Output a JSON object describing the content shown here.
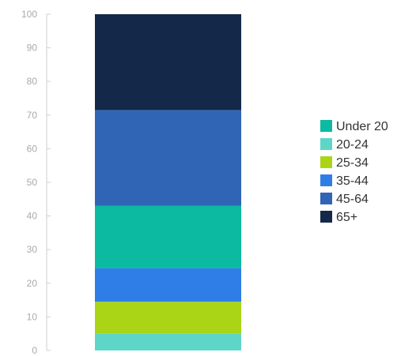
{
  "chart_data": {
    "type": "bar",
    "stacked": true,
    "ylim": [
      0,
      100
    ],
    "yticks": [
      0,
      10,
      20,
      30,
      40,
      50,
      60,
      70,
      80,
      90,
      100
    ],
    "grid": false,
    "legend_position": "right",
    "segments": [
      {
        "name": "20-24",
        "value": 5,
        "color": "#5dd6c7"
      },
      {
        "name": "25-34",
        "value": 9.5,
        "color": "#aad516"
      },
      {
        "name": "35-44",
        "value": 10,
        "color": "#2f7ee8"
      },
      {
        "name": "Under 20",
        "value": 18.5,
        "color": "#0cbaa1"
      },
      {
        "name": "45-64",
        "value": 28.5,
        "color": "#3065b5"
      },
      {
        "name": "65+",
        "value": 28.5,
        "color": "#14284a"
      }
    ],
    "legend": [
      {
        "label": "Under 20",
        "color": "#0cbaa1"
      },
      {
        "label": "20-24",
        "color": "#5dd6c7"
      },
      {
        "label": "25-34",
        "color": "#aad516"
      },
      {
        "label": "35-44",
        "color": "#2f7ee8"
      },
      {
        "label": "45-64",
        "color": "#3065b5"
      },
      {
        "label": "65+",
        "color": "#14284a"
      }
    ]
  }
}
